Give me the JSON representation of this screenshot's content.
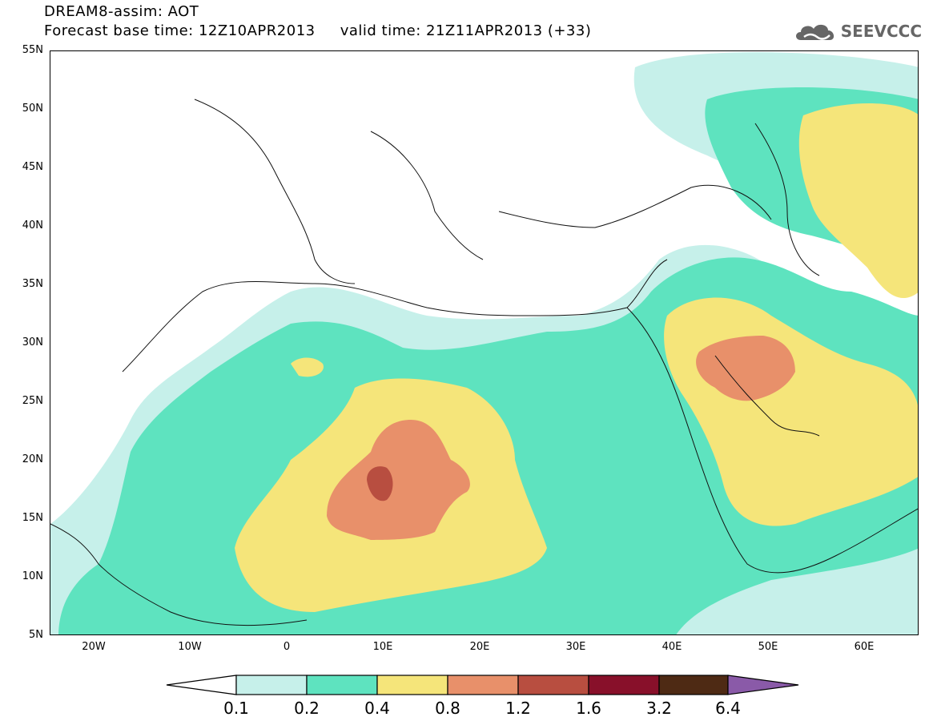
{
  "header": {
    "line1": "DREAM8-assim: AOT",
    "line2": "Forecast base time: 12Z10APR2013     valid time: 21Z11APR2013 (+33)",
    "logo_text": "SEEVCCC",
    "logo_icon": "cloud-icon"
  },
  "axes": {
    "lat_labels": [
      "55N",
      "50N",
      "45N",
      "40N",
      "35N",
      "30N",
      "25N",
      "20N",
      "15N",
      "10N",
      "5N"
    ],
    "lon_labels": [
      "20W",
      "10W",
      "0",
      "10E",
      "20E",
      "30E",
      "40E",
      "50E",
      "60E"
    ]
  },
  "colors": {
    "c0_1": "#c6f0ea",
    "c0_2": "#5ee3bf",
    "c0_4": "#f5e57a",
    "c0_8": "#e8906a",
    "c1_2": "#b84e40",
    "c1_6": "#88102a",
    "c3_2": "#4e2a14",
    "c6_4": "#8a5aa8"
  },
  "colorbar": {
    "labels": [
      "0.1",
      "0.2",
      "0.4",
      "0.8",
      "1.2",
      "1.6",
      "3.2",
      "6.4"
    ]
  }
}
